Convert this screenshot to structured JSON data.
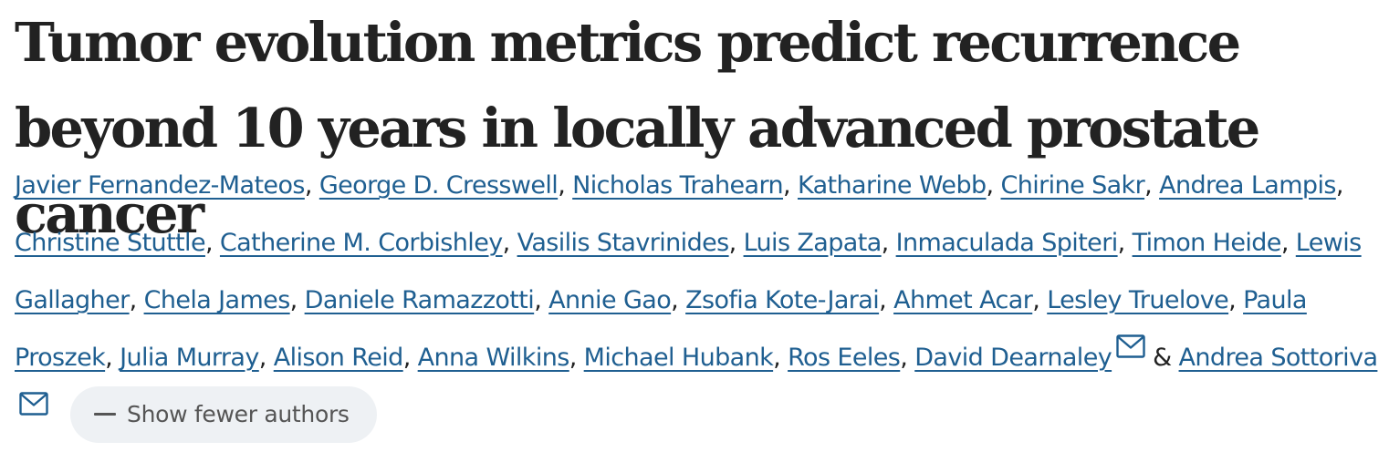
{
  "article": {
    "title": "Tumor evolution metrics predict recurrence beyond 10 years in locally advanced prostate cancer",
    "authors": [
      {
        "name": "Javier Fernandez-Mateos",
        "sep": ", "
      },
      {
        "name": "George D. Cresswell",
        "sep": ", "
      },
      {
        "name": "Nicholas Trahearn",
        "sep": ", "
      },
      {
        "name": "Katharine Webb",
        "sep": ", "
      },
      {
        "name": "Chirine Sakr",
        "sep": ", "
      },
      {
        "name": "Andrea Lampis",
        "sep": ", "
      },
      {
        "name": "Christine Stuttle",
        "sep": ", "
      },
      {
        "name": "Catherine M. Corbishley",
        "sep": ", "
      },
      {
        "name": "Vasilis Stavrinides",
        "sep": ", "
      },
      {
        "name": "Luis Zapata",
        "sep": ", "
      },
      {
        "name": "Inmaculada Spiteri",
        "sep": ", "
      },
      {
        "name": "Timon Heide",
        "sep": ", "
      },
      {
        "name": "Lewis Gallagher",
        "sep": ", "
      },
      {
        "name": "Chela James",
        "sep": ", "
      },
      {
        "name": "Daniele Ramazzotti",
        "sep": ", "
      },
      {
        "name": "Annie Gao",
        "sep": ", "
      },
      {
        "name": "Zsofia Kote-Jarai",
        "sep": ", "
      },
      {
        "name": "Ahmet Acar",
        "sep": ", "
      },
      {
        "name": "Lesley Truelove",
        "sep": ", "
      },
      {
        "name": "Paula Proszek",
        "sep": ", "
      },
      {
        "name": "Julia Murray",
        "sep": ", "
      },
      {
        "name": "Alison Reid",
        "sep": ", "
      },
      {
        "name": "Anna Wilkins",
        "sep": ", "
      },
      {
        "name": "Michael Hubank",
        "sep": ", "
      },
      {
        "name": "Ros Eeles",
        "sep": ", "
      },
      {
        "name": "David Dearnaley",
        "sep": " ",
        "corresponding": true,
        "icon": "mail-icon"
      },
      {
        "name": "Andrea Sottoriva",
        "sep": "",
        "corresponding": true,
        "icon": "mail-icon"
      }
    ],
    "conjunction": "&",
    "show_fewer_label": "Show fewer authors",
    "show_fewer_icon": "minus-icon"
  },
  "colors": {
    "title": "#222222",
    "link": "#1f5f91",
    "button_bg": "#eef1f4",
    "button_text": "#555555"
  }
}
